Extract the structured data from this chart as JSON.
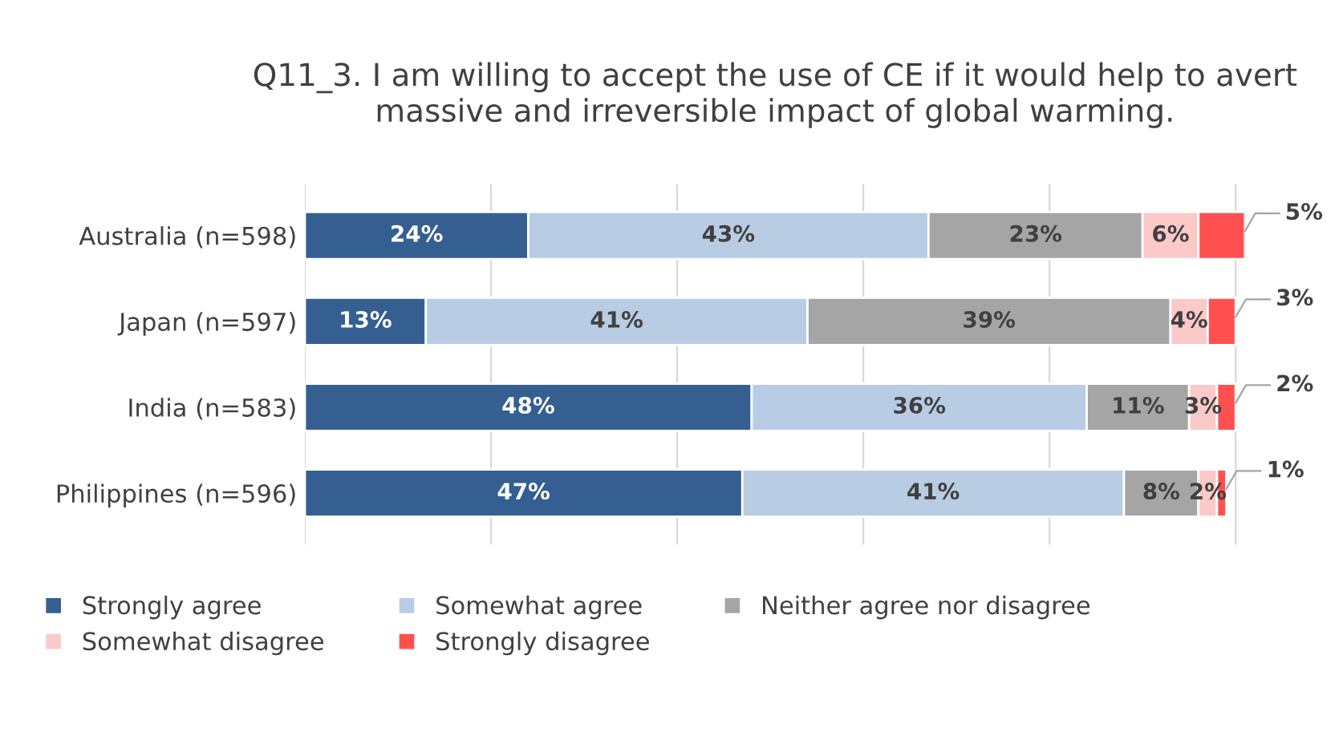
{
  "chart_data": {
    "type": "bar",
    "orientation": "horizontal",
    "stacked": true,
    "title": "Q11_3. I am willing to accept the use of CE if it would help to avert\nmassive and irreversible impact of global warming.",
    "categories": [
      "Australia (n=598)",
      "Japan (n=597)",
      "India (n=583)",
      "Philippines (n=596)"
    ],
    "series": [
      {
        "name": "Strongly agree",
        "color": "#355f91",
        "values": [
          24,
          13,
          48,
          47
        ],
        "value_labels": [
          "24%",
          "13%",
          "48%",
          "47%"
        ]
      },
      {
        "name": "Somewhat agree",
        "color": "#b8cce4",
        "values": [
          43,
          41,
          36,
          41
        ],
        "value_labels": [
          "43%",
          "41%",
          "36%",
          "41%"
        ]
      },
      {
        "name": "Neither agree nor disagree",
        "color": "#a5a5a5",
        "values": [
          23,
          39,
          11,
          8
        ],
        "value_labels": [
          "23%",
          "39%",
          "11%",
          "8%"
        ]
      },
      {
        "name": "Somewhat disagree",
        "color": "#fcc9c9",
        "values": [
          6,
          4,
          3,
          2
        ],
        "value_labels": [
          "6%",
          "4%",
          "3%",
          "2%"
        ]
      },
      {
        "name": "Strongly disagree",
        "color": "#ff5050",
        "values": [
          5,
          3,
          2,
          1
        ],
        "value_labels": [
          "5%",
          "3%",
          "2%",
          "1%"
        ]
      }
    ],
    "grid": "x",
    "legend": "bottom"
  }
}
